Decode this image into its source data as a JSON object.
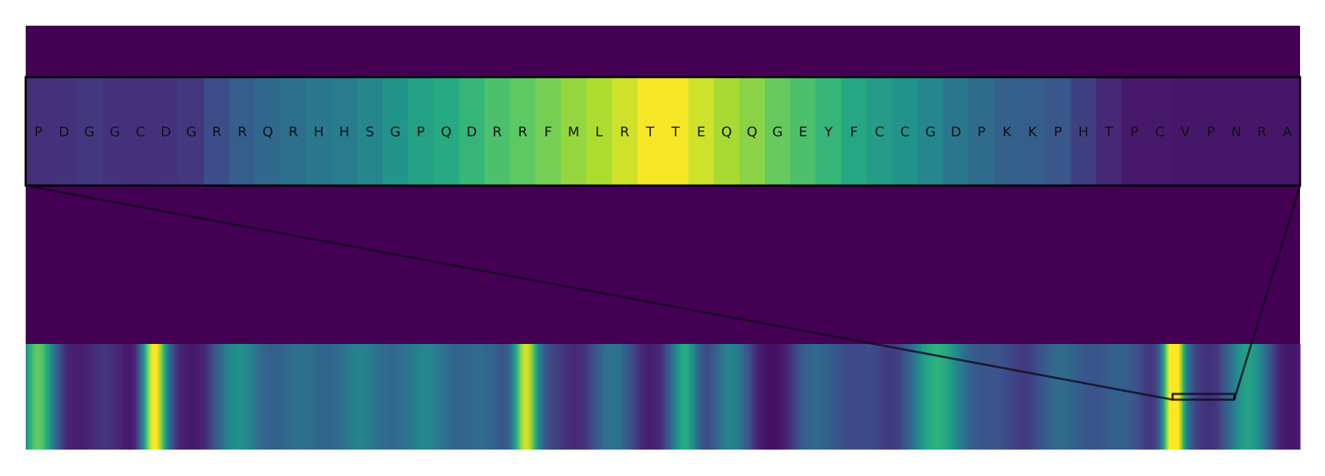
{
  "chart_data": {
    "type": "heatmap",
    "colormap": "viridis",
    "background_color": "#440154",
    "frame_color": "#000000",
    "grid": false,
    "axes_visible": false,
    "zoom_panel": {
      "sequence": [
        "P",
        "D",
        "G",
        "G",
        "C",
        "D",
        "G",
        "R",
        "R",
        "Q",
        "R",
        "H",
        "H",
        "S",
        "G",
        "P",
        "Q",
        "D",
        "R",
        "R",
        "F",
        "M",
        "L",
        "R",
        "T",
        "T",
        "E",
        "Q",
        "Q",
        "G",
        "E",
        "Y",
        "F",
        "C",
        "C",
        "G",
        "D",
        "P",
        "K",
        "K",
        "P",
        "H",
        "T",
        "P",
        "C",
        "V",
        "P",
        "N",
        "R",
        "A"
      ],
      "values": [
        0.16,
        0.17,
        0.18,
        0.17,
        0.16,
        0.17,
        0.18,
        0.24,
        0.3,
        0.34,
        0.37,
        0.4,
        0.42,
        0.46,
        0.52,
        0.57,
        0.61,
        0.66,
        0.71,
        0.75,
        0.79,
        0.84,
        0.88,
        0.93,
        0.99,
        0.99,
        0.93,
        0.87,
        0.82,
        0.76,
        0.71,
        0.66,
        0.6,
        0.55,
        0.51,
        0.46,
        0.4,
        0.35,
        0.31,
        0.3,
        0.27,
        0.2,
        0.14,
        0.09,
        0.09,
        0.08,
        0.08,
        0.08,
        0.08,
        0.08
      ]
    },
    "full_track": {
      "length": 600,
      "highlight_range": [
        540,
        569
      ],
      "profile": {
        "baseline": 0.12,
        "peaks": [
          {
            "center": 5,
            "width": 8,
            "height": 0.55
          },
          {
            "center": 60,
            "width": 6,
            "height": 0.92
          },
          {
            "center": 100,
            "width": 15,
            "height": 0.3
          },
          {
            "center": 150,
            "width": 40,
            "height": 0.22
          },
          {
            "center": 200,
            "width": 30,
            "height": 0.26
          },
          {
            "center": 235,
            "width": 6,
            "height": 0.8
          },
          {
            "center": 275,
            "width": 12,
            "height": 0.18
          },
          {
            "center": 310,
            "width": 7,
            "height": 0.45
          },
          {
            "center": 330,
            "width": 10,
            "height": 0.35
          },
          {
            "center": 375,
            "width": 14,
            "height": 0.22
          },
          {
            "center": 430,
            "width": 16,
            "height": 0.45
          },
          {
            "center": 490,
            "width": 35,
            "height": 0.22
          },
          {
            "center": 540,
            "width": 5,
            "height": 0.98
          },
          {
            "center": 575,
            "width": 12,
            "height": 0.4
          }
        ]
      }
    }
  }
}
